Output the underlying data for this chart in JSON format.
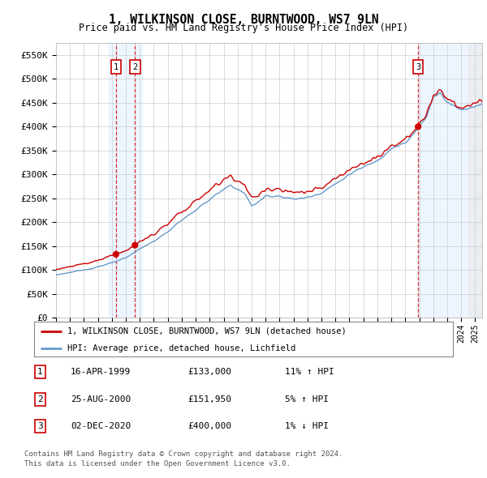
{
  "title": "1, WILKINSON CLOSE, BURNTWOOD, WS7 9LN",
  "subtitle": "Price paid vs. HM Land Registry's House Price Index (HPI)",
  "ylim": [
    0,
    575000
  ],
  "yticks": [
    0,
    50000,
    100000,
    150000,
    200000,
    250000,
    300000,
    350000,
    400000,
    450000,
    500000,
    550000
  ],
  "ytick_labels": [
    "£0",
    "£50K",
    "£100K",
    "£150K",
    "£200K",
    "£250K",
    "£300K",
    "£350K",
    "£400K",
    "£450K",
    "£500K",
    "£550K"
  ],
  "sale_dates_float": [
    1999.29,
    2000.65,
    2020.92
  ],
  "sale_prices": [
    133000,
    151950,
    400000
  ],
  "sale_labels": [
    "1",
    "2",
    "3"
  ],
  "sale_info": [
    {
      "num": "1",
      "date": "16-APR-1999",
      "price": "£133,000",
      "hpi": "11% ↑ HPI"
    },
    {
      "num": "2",
      "date": "25-AUG-2000",
      "price": "£151,950",
      "hpi": "5% ↑ HPI"
    },
    {
      "num": "3",
      "date": "02-DEC-2020",
      "price": "£400,000",
      "hpi": "1% ↓ HPI"
    }
  ],
  "legend_entries": [
    {
      "label": "1, WILKINSON CLOSE, BURNTWOOD, WS7 9LN (detached house)",
      "color": "#cc0000"
    },
    {
      "label": "HPI: Average price, detached house, Lichfield",
      "color": "#6699cc"
    }
  ],
  "footer": [
    "Contains HM Land Registry data © Crown copyright and database right 2024.",
    "This data is licensed under the Open Government Licence v3.0."
  ],
  "background_color": "#ffffff",
  "plot_bg_color": "#ffffff",
  "grid_color": "#cccccc",
  "sale_marker_color": "#cc0000",
  "hpi_line_color": "#6699cc",
  "price_line_color": "#cc0000",
  "shade_color": "#ddeeff",
  "xlim": [
    1995.0,
    2025.5
  ]
}
